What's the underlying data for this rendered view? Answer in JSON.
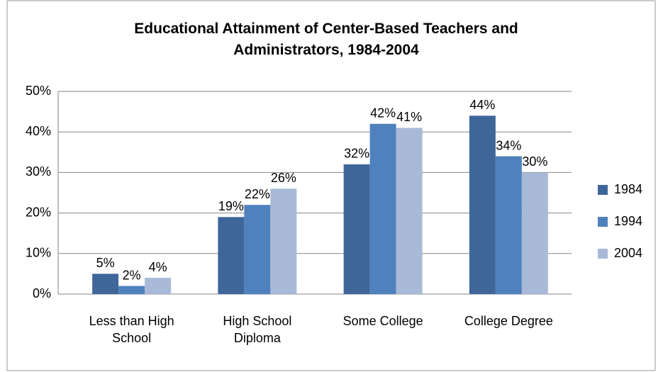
{
  "chart_data": {
    "type": "bar",
    "title": "Educational Attainment of Center-Based Teachers and Administrators, 1984-2004",
    "categories": [
      "Less than High School",
      "High School Diploma",
      "Some College",
      "College Degree"
    ],
    "series": [
      {
        "name": "1984",
        "color": "#3f6699",
        "values": [
          5,
          19,
          32,
          44
        ],
        "value_labels": [
          "5%",
          "19%",
          "32%",
          "44%"
        ]
      },
      {
        "name": "1994",
        "color": "#4f81bd",
        "values": [
          2,
          22,
          42,
          34
        ],
        "value_labels": [
          "2%",
          "22%",
          "42%",
          "34%"
        ]
      },
      {
        "name": "2004",
        "color": "#a9b9d8",
        "values": [
          4,
          26,
          41,
          30
        ],
        "value_labels": [
          "4%",
          "26%",
          "41%",
          "30%"
        ]
      }
    ],
    "ylim": [
      0,
      50
    ],
    "yticks": [
      {
        "value": 0,
        "label": "0%"
      },
      {
        "value": 10,
        "label": "10%"
      },
      {
        "value": 20,
        "label": "20%"
      },
      {
        "value": 30,
        "label": "30%"
      },
      {
        "value": 40,
        "label": "40%"
      },
      {
        "value": 50,
        "label": "50%"
      }
    ],
    "grid": true,
    "legend": "right"
  }
}
